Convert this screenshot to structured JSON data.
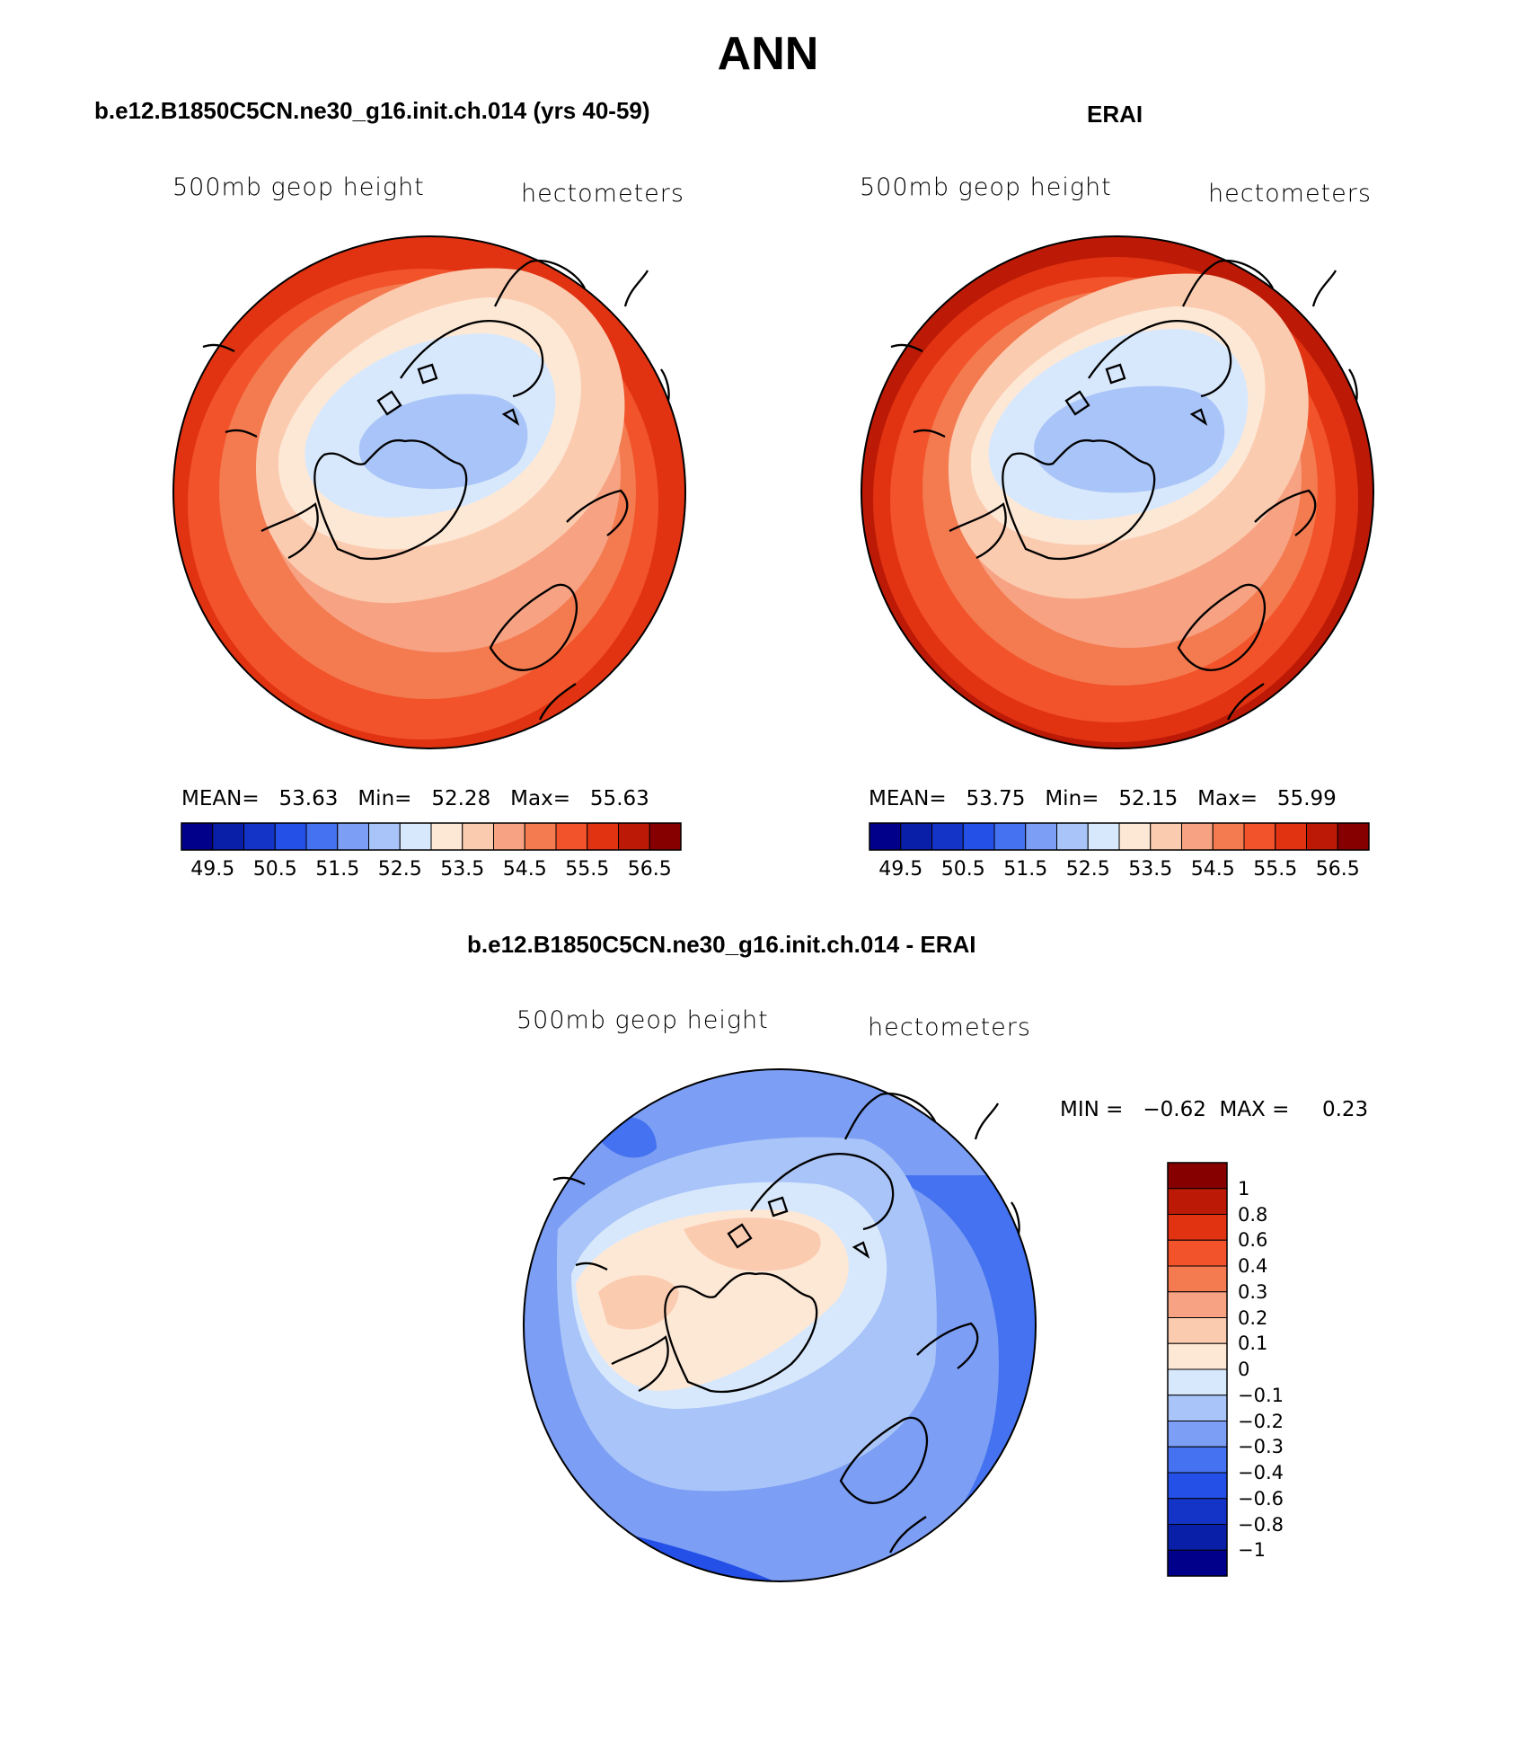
{
  "figure_title": "ANN",
  "field_label": "500mb geop height",
  "units_label": "hectometers",
  "panels": [
    {
      "title": "b.e12.B1850C5CN.ne30_g16.init.ch.014 (yrs 40-59)",
      "stats": {
        "mean_label": "MEAN=",
        "mean": "53.63",
        "min_label": "Min=",
        "min": "52.28",
        "max_label": "Max=",
        "max": "55.63"
      }
    },
    {
      "title": "ERAI",
      "stats": {
        "mean_label": "MEAN=",
        "mean": "53.75",
        "min_label": "Min=",
        "min": "52.15",
        "max_label": "Max=",
        "max": "55.99"
      }
    }
  ],
  "abs_colorbar": {
    "colors": [
      "#00008b",
      "#0a1fa8",
      "#1434c8",
      "#2450e8",
      "#4472f0",
      "#7c9ef4",
      "#a8c4f8",
      "#d8e8fc",
      "#fde8d6",
      "#fbcbb0",
      "#f7a383",
      "#f47a50",
      "#f2532a",
      "#e13312",
      "#bc1a06",
      "#860000"
    ],
    "tick_labels": [
      "49.5",
      "50.5",
      "51.5",
      "52.5",
      "53.5",
      "54.5",
      "55.5",
      "56.5"
    ]
  },
  "diff_panel": {
    "title": "b.e12.B1850C5CN.ne30_g16.init.ch.014 - ERAI",
    "min_label": "MIN =",
    "min": "−0.62",
    "max_label": "MAX =",
    "max": "0.23",
    "colors": [
      "#860000",
      "#bc1a06",
      "#e13312",
      "#f2532a",
      "#f47a50",
      "#f7a383",
      "#fbcbb0",
      "#fde8d6",
      "#d8e8fc",
      "#a8c4f8",
      "#7c9ef4",
      "#4472f0",
      "#2450e8",
      "#1434c8",
      "#0a1fa8",
      "#00008b"
    ],
    "tick_labels": [
      "1",
      "0.8",
      "0.6",
      "0.4",
      "0.3",
      "0.2",
      "0.1",
      "0",
      "−0.1",
      "−0.2",
      "−0.3",
      "−0.4",
      "−0.6",
      "−0.8",
      "−1"
    ]
  }
}
